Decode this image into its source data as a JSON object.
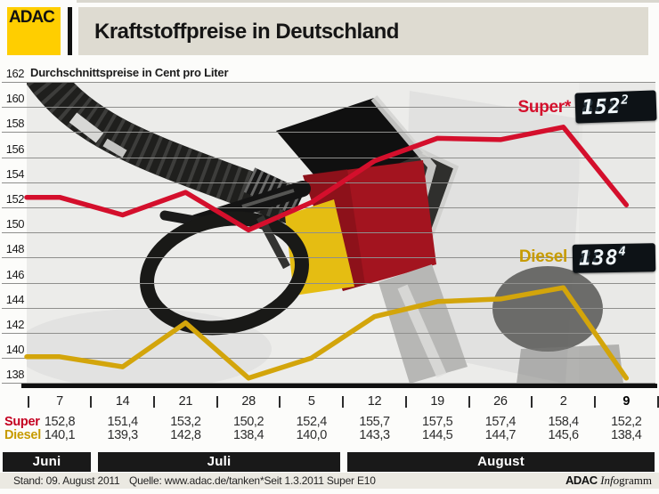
{
  "header": {
    "logo_text": "ADAC",
    "title": "Kraftstoffpreise in Deutschland"
  },
  "chart": {
    "subtitle": "Durchschnittspreise in Cent pro Liter"
  },
  "chart_data": {
    "type": "line",
    "title": "Kraftstoffpreise in Deutschland",
    "ylabel": "Cent pro Liter",
    "ylim": [
      138,
      162
    ],
    "ytick_step": 2,
    "y_ticks": [
      162,
      160,
      158,
      156,
      154,
      152,
      150,
      148,
      146,
      144,
      142,
      140,
      138
    ],
    "x_dates": [
      "7",
      "14",
      "21",
      "28",
      "5",
      "12",
      "19",
      "26",
      "2",
      "9"
    ],
    "bold_x_index": 9,
    "months": [
      {
        "label": "Juni"
      },
      {
        "label": "Juli"
      },
      {
        "label": "August"
      }
    ],
    "series": [
      {
        "name": "Super",
        "label": "Super*",
        "color": "#d40f2c",
        "values": [
          152.8,
          151.4,
          153.2,
          150.2,
          152.4,
          155.7,
          157.5,
          157.4,
          158.4,
          152.2
        ],
        "lcd": {
          "int": "152",
          "dec": "2"
        }
      },
      {
        "name": "Diesel",
        "label": "Diesel",
        "color": "#d3a50b",
        "values": [
          140.1,
          139.3,
          142.8,
          138.4,
          140.0,
          143.3,
          144.5,
          144.7,
          145.6,
          138.4
        ],
        "lcd": {
          "int": "138",
          "dec": "4"
        }
      }
    ]
  },
  "table": {
    "row_label_colors": {
      "Super": "#c40020",
      "Diesel": "#c79b00"
    }
  },
  "footer": {
    "stand": "Stand: 09. August 2011",
    "source": "Quelle: www.adac.de/tanken",
    "note": "*Seit 1.3.2011 Super E10",
    "credit_bold": "ADAC",
    "credit_italic": "Info",
    "credit_rest": "gramm"
  }
}
